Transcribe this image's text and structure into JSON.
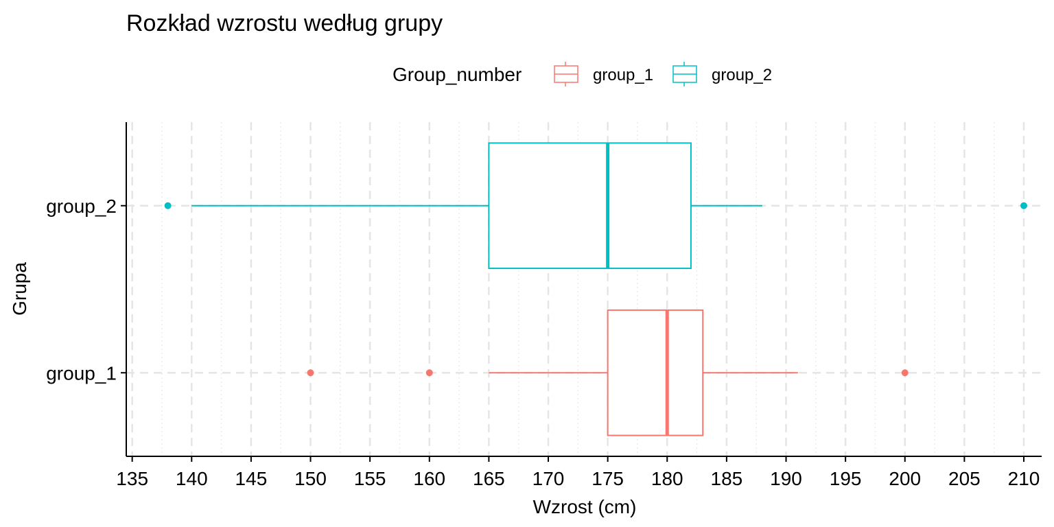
{
  "chart_data": {
    "type": "boxplot",
    "orientation": "horizontal",
    "title": "Rozkład wzrostu według grupy",
    "xlabel": "Wzrost (cm)",
    "ylabel": "Grupa",
    "xlim": [
      134.5,
      211.5
    ],
    "x_ticks": [
      135,
      140,
      145,
      150,
      155,
      160,
      165,
      170,
      175,
      180,
      185,
      190,
      195,
      200,
      205,
      210
    ],
    "grid": "dashed",
    "legend": {
      "title": "Group_number",
      "position": "top"
    },
    "series": [
      {
        "name": "group_1",
        "color": "#F8766D",
        "min": 165,
        "q1": 175,
        "median": 180,
        "q3": 183,
        "max": 191,
        "outliers": [
          150,
          160,
          200
        ]
      },
      {
        "name": "group_2",
        "color": "#00BFC4",
        "min": 140,
        "q1": 165,
        "median": 175,
        "q3": 182,
        "max": 188,
        "outliers": [
          138,
          210
        ]
      }
    ]
  }
}
